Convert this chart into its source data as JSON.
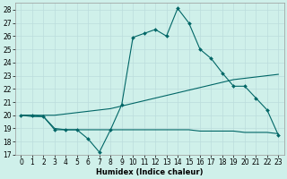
{
  "title": "",
  "xlabel": "Humidex (Indice chaleur)",
  "background_color": "#cff0ea",
  "grid_color": "#bbdddd",
  "line_color": "#006666",
  "xlim": [
    -0.5,
    23.5
  ],
  "ylim": [
    17,
    28.5
  ],
  "yticks": [
    17,
    18,
    19,
    20,
    21,
    22,
    23,
    24,
    25,
    26,
    27,
    28
  ],
  "xticks": [
    0,
    1,
    2,
    3,
    4,
    5,
    6,
    7,
    8,
    9,
    10,
    11,
    12,
    13,
    14,
    15,
    16,
    17,
    18,
    19,
    20,
    21,
    22,
    23
  ],
  "series1_x": [
    0,
    1,
    2,
    3,
    4,
    5,
    6,
    7,
    8,
    9,
    10,
    11,
    12,
    13,
    14,
    15,
    16,
    17,
    18,
    19,
    20,
    21,
    22,
    23
  ],
  "series1_y": [
    20.0,
    20.0,
    19.9,
    18.9,
    18.9,
    18.9,
    18.2,
    17.2,
    18.9,
    20.8,
    25.9,
    26.2,
    26.5,
    26.0,
    28.1,
    27.0,
    25.0,
    24.3,
    23.2,
    22.2,
    22.2,
    21.3,
    20.4,
    18.5
  ],
  "series2_x": [
    0,
    1,
    2,
    3,
    4,
    5,
    6,
    7,
    8,
    9,
    10,
    11,
    12,
    13,
    14,
    15,
    16,
    17,
    18,
    19,
    20,
    21,
    22,
    23
  ],
  "series2_y": [
    20.0,
    20.0,
    20.0,
    20.0,
    20.1,
    20.2,
    20.3,
    20.4,
    20.5,
    20.7,
    20.9,
    21.1,
    21.3,
    21.5,
    21.7,
    21.9,
    22.1,
    22.3,
    22.5,
    22.7,
    22.8,
    22.9,
    23.0,
    23.1
  ],
  "series3_x": [
    0,
    1,
    2,
    3,
    4,
    5,
    6,
    7,
    8,
    9,
    10,
    11,
    12,
    13,
    14,
    15,
    16,
    17,
    18,
    19,
    20,
    21,
    22,
    23
  ],
  "series3_y": [
    20.0,
    19.9,
    19.9,
    19.0,
    18.9,
    18.9,
    18.9,
    18.9,
    18.9,
    18.9,
    18.9,
    18.9,
    18.9,
    18.9,
    18.9,
    18.9,
    18.8,
    18.8,
    18.8,
    18.8,
    18.7,
    18.7,
    18.7,
    18.6
  ],
  "tick_fontsize": 5.5,
  "xlabel_fontsize": 6.0,
  "marker_size": 2.0
}
